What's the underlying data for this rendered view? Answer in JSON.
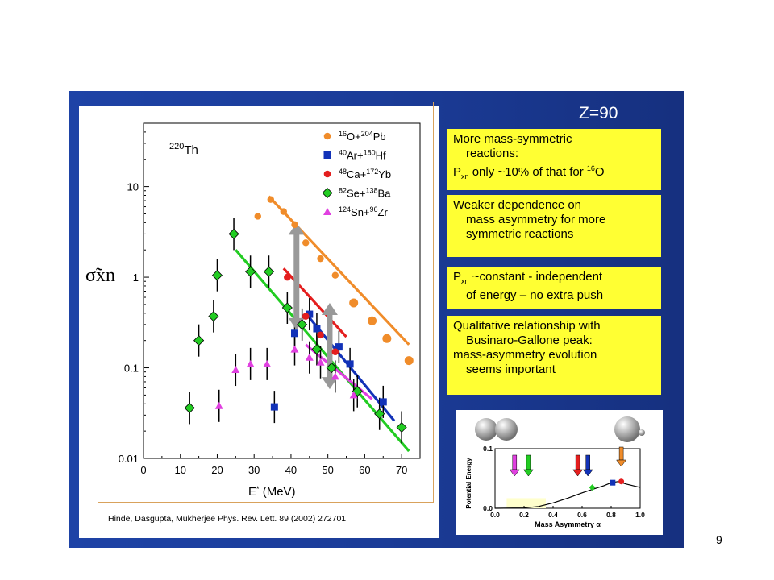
{
  "page_number": "9",
  "z_label": "Z=90",
  "notes": [
    {
      "id": "more-mass-symmetric",
      "lines": [
        {
          "indent": false,
          "parts": [
            {
              "t": "More mass-symmetric"
            }
          ]
        },
        {
          "indent": true,
          "parts": [
            {
              "t": "reactions:"
            }
          ]
        },
        {
          "indent": false,
          "parts": [
            {
              "t": "P"
            },
            {
              "t": "xn",
              "sub": true
            },
            {
              "t": " only ~10% of that for "
            },
            {
              "t": "16",
              "sup": true
            },
            {
              "t": "O"
            }
          ]
        }
      ]
    },
    {
      "id": "weaker-dependence",
      "lines": [
        {
          "indent": false,
          "parts": [
            {
              "t": "Weaker dependence on"
            }
          ]
        },
        {
          "indent": true,
          "parts": [
            {
              "t": "mass asymmetry for more"
            }
          ]
        },
        {
          "indent": true,
          "parts": [
            {
              "t": "symmetric reactions"
            }
          ]
        }
      ]
    },
    {
      "id": "pxn-constant",
      "lines": [
        {
          "indent": false,
          "parts": [
            {
              "t": "P"
            },
            {
              "t": "xn",
              "sub": true
            },
            {
              "t": " ~constant - independent"
            }
          ]
        },
        {
          "indent": true,
          "parts": [
            {
              "t": "of energy – no extra push"
            }
          ]
        }
      ]
    },
    {
      "id": "qualitative-relationship",
      "lines": [
        {
          "indent": false,
          "parts": [
            {
              "t": "Qualitative relationship with"
            }
          ]
        },
        {
          "indent": true,
          "parts": [
            {
              "t": "Businaro-Gallone peak:"
            }
          ]
        },
        {
          "indent": false,
          "parts": [
            {
              "t": "mass-asymmetry evolution"
            }
          ]
        },
        {
          "indent": true,
          "parts": [
            {
              "t": "seems important"
            }
          ]
        }
      ]
    }
  ],
  "citation": "Hinde, Dasgupta, Mukherjee  Phys. Rev. Lett. 89 (2002) 272701",
  "colors": {
    "O": "#f08c2a",
    "Ar": "#1232b8",
    "Ca": "#e41e1e",
    "Se": "#22cc22",
    "Sn": "#e040e0",
    "slide_bg": "#1b3c98",
    "note_bg": "#ffff33",
    "arrow_gray": "#999999"
  },
  "chart_data": [
    {
      "type": "scatter",
      "compound_label": {
        "mass": "220",
        "element": "Th"
      },
      "x_label": {
        "base": "E",
        "sup": "*",
        "unit": "(MeV)"
      },
      "y_label": "σ̃xn",
      "xlim": [
        0,
        75
      ],
      "ylim": [
        0.01,
        50
      ],
      "yscale": "log",
      "xticks": [
        0,
        10,
        20,
        30,
        40,
        50,
        60,
        70
      ],
      "yticks": [
        {
          "v": 0.01,
          "label": "0.01"
        },
        {
          "v": 0.1,
          "label": "0.1"
        },
        {
          "v": 1,
          "label": "1"
        },
        {
          "v": 10,
          "label": "10"
        }
      ],
      "series": [
        {
          "key": "O",
          "marker": "circle",
          "legend": [
            {
              "t": "16",
              "sup": true
            },
            {
              "t": "O+"
            },
            {
              "t": "204",
              "sup": true
            },
            {
              "t": "Pb"
            }
          ],
          "points": [
            [
              31,
              4.7
            ],
            [
              34.5,
              7.2
            ],
            [
              38,
              5.3
            ],
            [
              41,
              3.8
            ],
            [
              44,
              2.4
            ],
            [
              48,
              1.6
            ],
            [
              52,
              1.05
            ],
            [
              57,
              0.52
            ],
            [
              62,
              0.33
            ],
            [
              66,
              0.21
            ],
            [
              72,
              0.12
            ]
          ],
          "fit": [
            [
              34,
              7.8
            ],
            [
              72,
              0.18
            ]
          ]
        },
        {
          "key": "Ar",
          "marker": "square",
          "legend": [
            {
              "t": "40",
              "sup": true
            },
            {
              "t": "Ar+"
            },
            {
              "t": "180",
              "sup": true
            },
            {
              "t": "Hf"
            }
          ],
          "points": [
            [
              35.5,
              0.037
            ],
            [
              41,
              0.24
            ],
            [
              45,
              0.39
            ],
            [
              47,
              0.27
            ],
            [
              53,
              0.17
            ],
            [
              56,
              0.11
            ],
            [
              65,
              0.042
            ]
          ],
          "fit": [
            [
              44,
              0.4
            ],
            [
              68,
              0.026
            ]
          ]
        },
        {
          "key": "Ca",
          "marker": "circle",
          "legend": [
            {
              "t": "48",
              "sup": true
            },
            {
              "t": "Ca+"
            },
            {
              "t": "172",
              "sup": true
            },
            {
              "t": "Yb"
            }
          ],
          "points": [
            [
              39,
              1.0
            ],
            [
              44,
              0.37
            ],
            [
              48,
              0.23
            ],
            [
              52,
              0.15
            ]
          ],
          "fit": [
            [
              38,
              1.25
            ],
            [
              55,
              0.22
            ]
          ]
        },
        {
          "key": "Se",
          "marker": "diamond",
          "legend": [
            {
              "t": "82",
              "sup": true
            },
            {
              "t": "Se+"
            },
            {
              "t": "138",
              "sup": true
            },
            {
              "t": "Ba"
            }
          ],
          "points": [
            [
              12.5,
              0.036
            ],
            [
              15,
              0.2
            ],
            [
              19,
              0.37
            ],
            [
              20,
              1.05
            ],
            [
              24.5,
              3.0
            ],
            [
              29,
              1.15
            ],
            [
              34,
              1.15
            ],
            [
              39,
              0.46
            ],
            [
              43,
              0.3
            ],
            [
              47,
              0.16
            ],
            [
              51,
              0.1
            ],
            [
              58,
              0.055
            ],
            [
              64,
              0.031
            ],
            [
              70,
              0.022
            ]
          ],
          "fit": [
            [
              25,
              2.0
            ],
            [
              72,
              0.012
            ]
          ]
        },
        {
          "key": "Sn",
          "marker": "triangle",
          "legend": [
            {
              "t": "124",
              "sup": true
            },
            {
              "t": "Sn+"
            },
            {
              "t": "96",
              "sup": true
            },
            {
              "t": "Zr"
            }
          ],
          "points": [
            [
              20.5,
              0.038
            ],
            [
              25,
              0.095
            ],
            [
              29,
              0.11
            ],
            [
              33.5,
              0.11
            ],
            [
              41,
              0.16
            ],
            [
              45,
              0.13
            ],
            [
              48,
              0.115
            ],
            [
              52,
              0.08
            ],
            [
              57,
              0.05
            ]
          ],
          "fit": [
            [
              44,
              0.18
            ],
            [
              62,
              0.045
            ]
          ]
        }
      ]
    },
    {
      "type": "line",
      "x_label": "Mass Asymmetry α",
      "y_label": "Potential Energy",
      "xlim": [
        0,
        1
      ],
      "ylim": [
        0,
        0.1
      ],
      "xticks": [
        {
          "v": 0,
          "label": "0.0"
        },
        {
          "v": 0.2,
          "label": "0.2"
        },
        {
          "v": 0.4,
          "label": "0.4"
        },
        {
          "v": 0.6,
          "label": "0.6"
        },
        {
          "v": 0.8,
          "label": "0.8"
        },
        {
          "v": 1,
          "label": "1.0"
        }
      ],
      "yticks": [
        {
          "v": 0,
          "label": "0.0"
        },
        {
          "v": 0.1,
          "label": "0.1"
        }
      ],
      "curve": [
        [
          0,
          0
        ],
        [
          0.2,
          0.0005
        ],
        [
          0.3,
          0.003
        ],
        [
          0.4,
          0.009
        ],
        [
          0.5,
          0.017
        ],
        [
          0.6,
          0.026
        ],
        [
          0.7,
          0.034
        ],
        [
          0.75,
          0.038
        ],
        [
          0.8,
          0.043
        ],
        [
          0.85,
          0.045
        ],
        [
          0.9,
          0.041
        ],
        [
          1.0,
          0.035
        ]
      ],
      "arrows": [
        {
          "key": "Sn",
          "x": 0.135
        },
        {
          "key": "Se",
          "x": 0.23
        },
        {
          "key": "Ca",
          "x": 0.57
        },
        {
          "key": "Ar",
          "x": 0.64
        },
        {
          "key": "O",
          "x": 0.87
        }
      ],
      "markers": [
        {
          "key": "Se",
          "x": 0.67,
          "y": 0.035,
          "shape": "diamond"
        },
        {
          "key": "Ar",
          "x": 0.81,
          "y": 0.043,
          "shape": "square"
        },
        {
          "key": "Ca",
          "x": 0.87,
          "y": 0.045,
          "shape": "circle"
        }
      ]
    }
  ]
}
